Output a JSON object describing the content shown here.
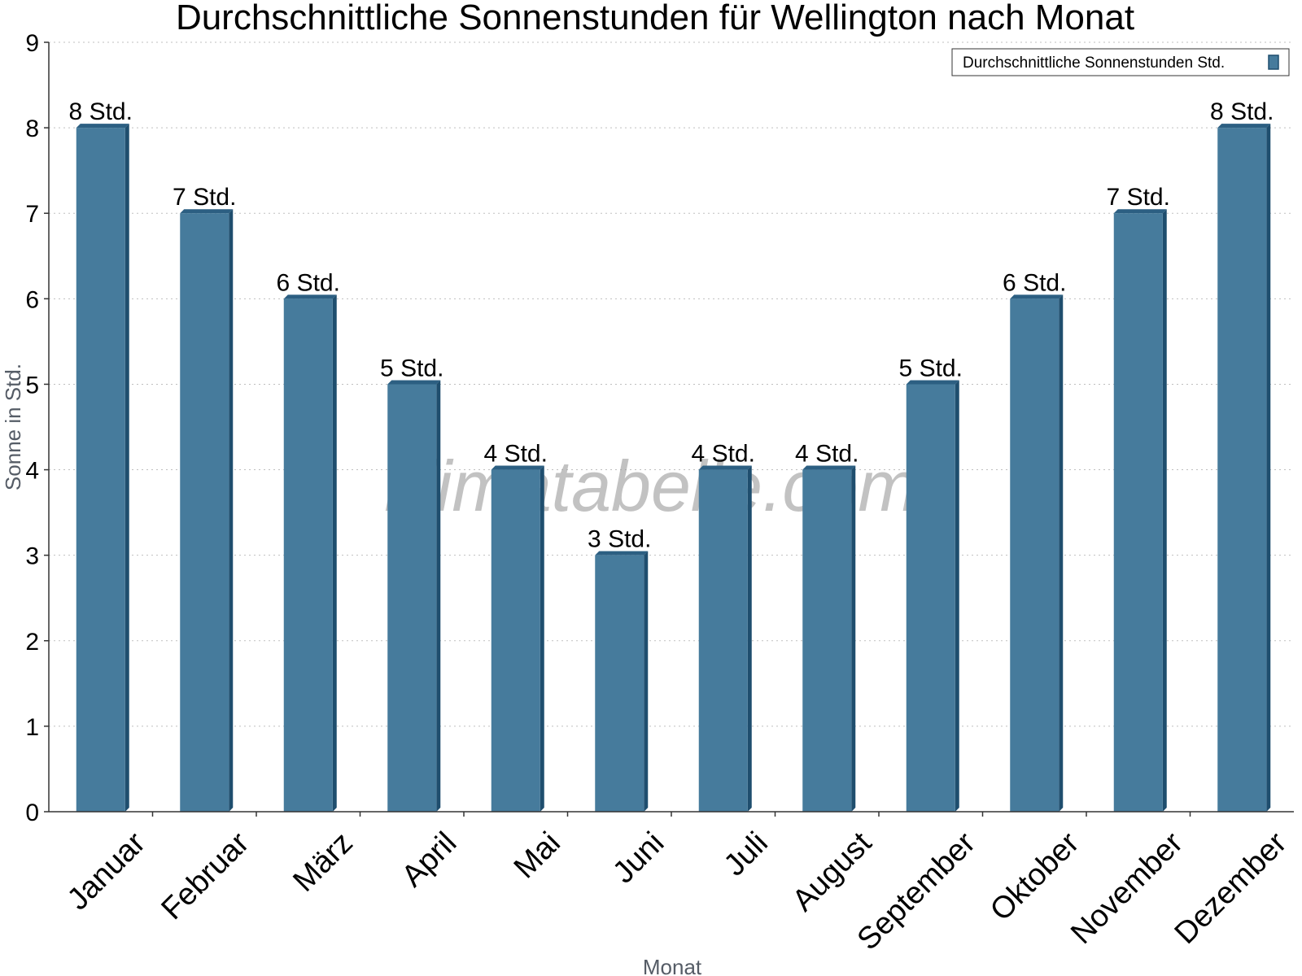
{
  "chart_data": {
    "type": "bar",
    "title": "Durchschnittliche Sonnenstunden für Wellington nach Monat",
    "xlabel": "Monat",
    "ylabel": "Sonne in Std.",
    "ylim": [
      0,
      9
    ],
    "yticks": [
      "0",
      "1",
      "2",
      "3",
      "4",
      "5",
      "6",
      "7",
      "8",
      "9"
    ],
    "grid": true,
    "legend_position": "top-right",
    "categories": [
      "Januar",
      "Februar",
      "März",
      "April",
      "Mai",
      "Juni",
      "Juli",
      "August",
      "September",
      "Oktober",
      "November",
      "Dezember"
    ],
    "series": [
      {
        "name": "Durchschnittliche Sonnenstunden Std.",
        "values": [
          8,
          7,
          6,
          5,
          4,
          3,
          4,
          4,
          5,
          6,
          7,
          8
        ],
        "labels": [
          "8 Std.",
          "7 Std.",
          "6 Std.",
          "5 Std.",
          "4 Std.",
          "3 Std.",
          "4 Std.",
          "4 Std.",
          "5 Std.",
          "6 Std.",
          "7 Std.",
          "8 Std."
        ]
      }
    ],
    "colors": {
      "bar": "#467b9c",
      "bar_side": "#1f4e6e",
      "bar_top": "#2c5f82",
      "grid": "#bfbfbf",
      "axis": "#333333"
    },
    "watermark": "klimatabelle.com"
  }
}
